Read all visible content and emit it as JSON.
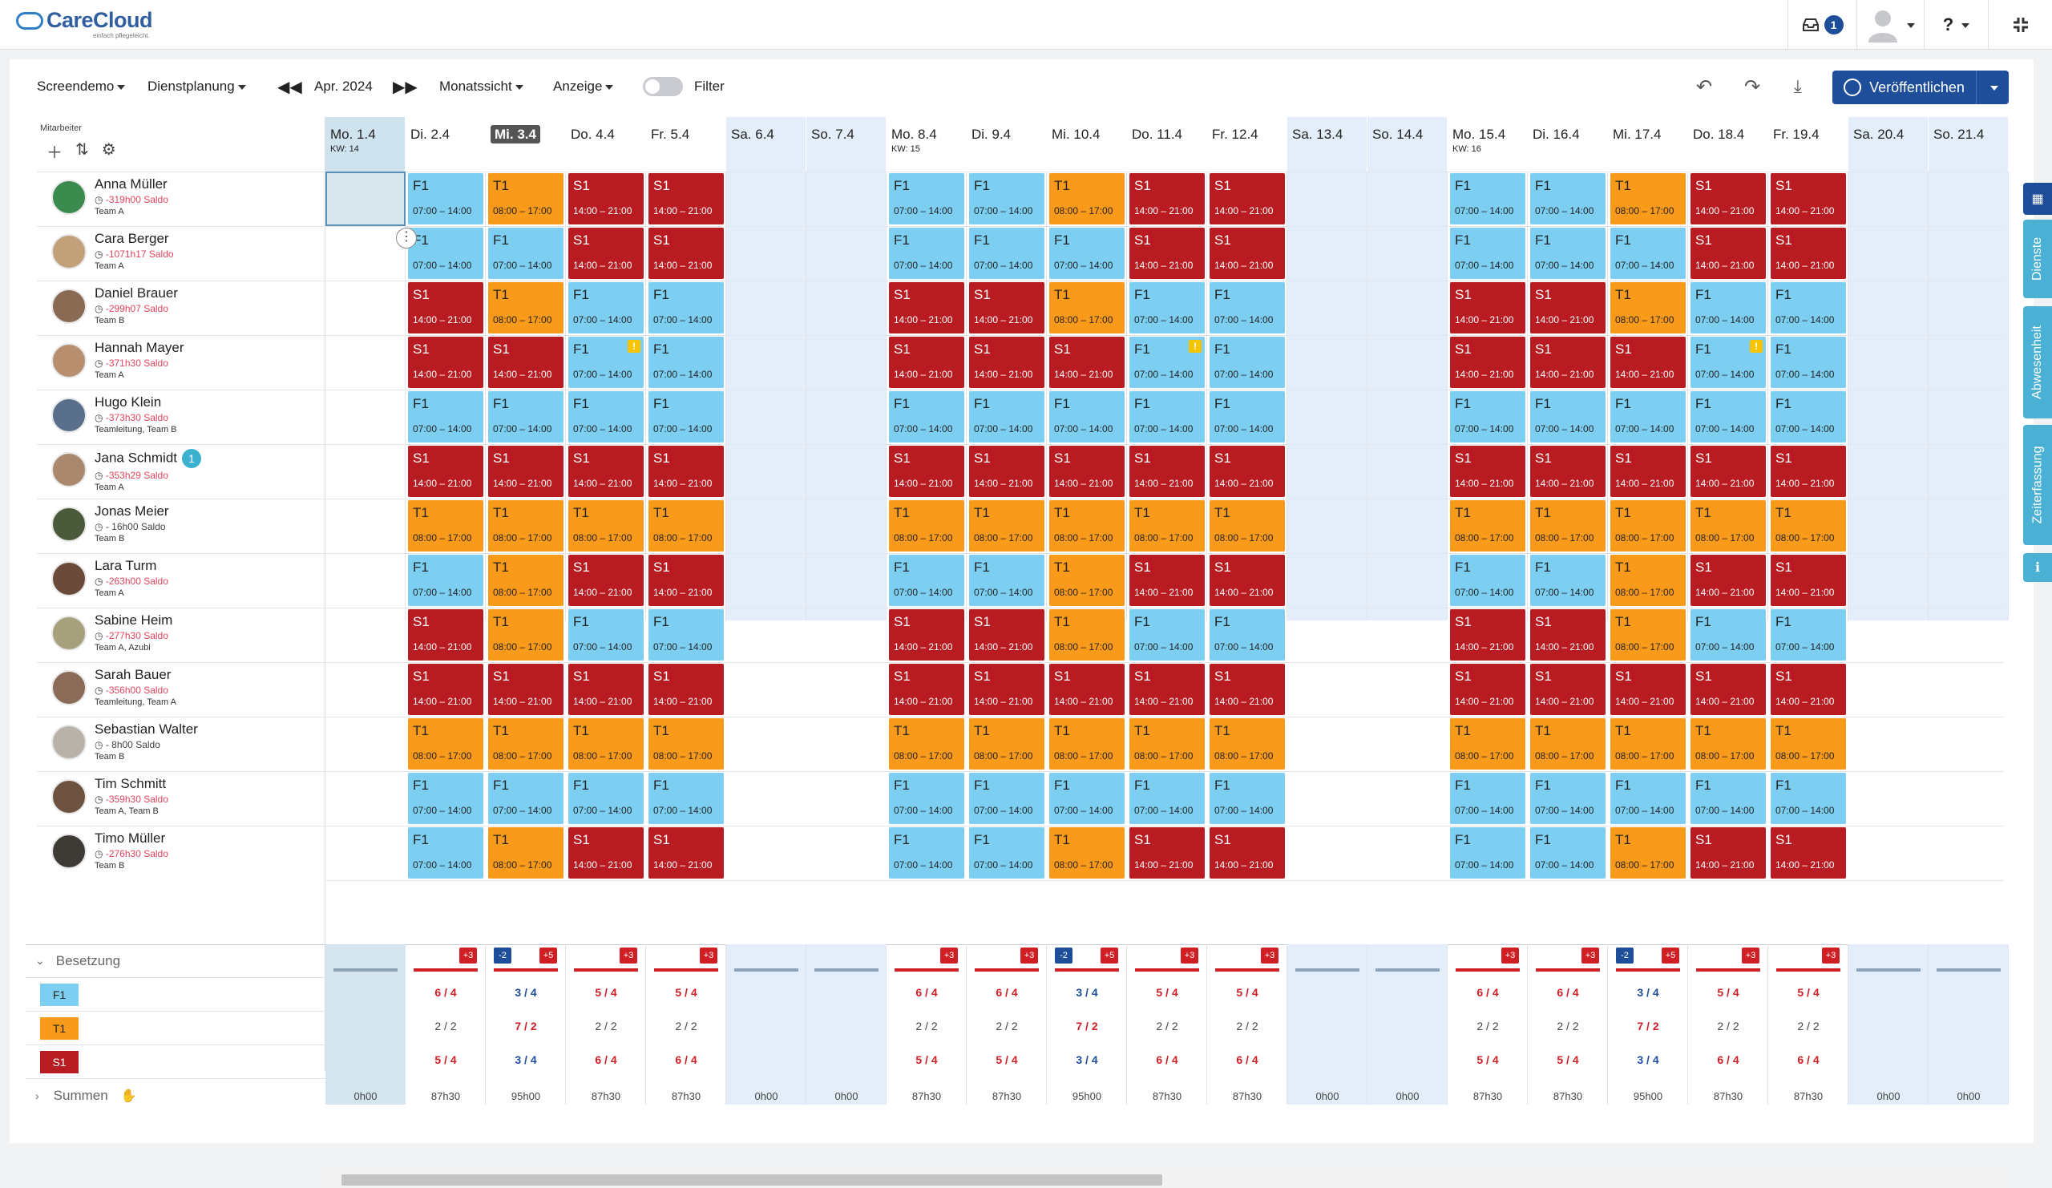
{
  "app": {
    "name": "CareCloud",
    "tagline": "einfach pflegeleicht."
  },
  "topbar": {
    "inbox_count": "1",
    "help_label": "?"
  },
  "toolbar": {
    "workspace": "Screendemo",
    "module": "Dienstplanung",
    "period": "Apr. 2024",
    "view": "Monatssicht",
    "display": "Anzeige",
    "filter_label": "Filter",
    "publish_label": "Veröffentlichen"
  },
  "left_header": "Mitarbeiter",
  "days": [
    {
      "label": "Mo. 1.4",
      "kw": "KW: 14",
      "weekend": false
    },
    {
      "label": "Di. 2.4",
      "kw": "",
      "weekend": false
    },
    {
      "label": "Mi. 3.4",
      "kw": "",
      "weekend": false
    },
    {
      "label": "Do. 4.4",
      "kw": "",
      "weekend": false
    },
    {
      "label": "Fr. 5.4",
      "kw": "",
      "weekend": false
    },
    {
      "label": "Sa. 6.4",
      "kw": "",
      "weekend": true
    },
    {
      "label": "So. 7.4",
      "kw": "",
      "weekend": true
    },
    {
      "label": "Mo. 8.4",
      "kw": "KW: 15",
      "weekend": false
    },
    {
      "label": "Di. 9.4",
      "kw": "",
      "weekend": false
    },
    {
      "label": "Mi. 10.4",
      "kw": "",
      "weekend": false
    },
    {
      "label": "Do. 11.4",
      "kw": "",
      "weekend": false
    },
    {
      "label": "Fr. 12.4",
      "kw": "",
      "weekend": false
    },
    {
      "label": "Sa. 13.4",
      "kw": "",
      "weekend": true
    },
    {
      "label": "So. 14.4",
      "kw": "",
      "weekend": true
    },
    {
      "label": "Mo. 15.4",
      "kw": "KW: 16",
      "weekend": false
    },
    {
      "label": "Di. 16.4",
      "kw": "",
      "weekend": false
    },
    {
      "label": "Mi. 17.4",
      "kw": "",
      "weekend": false
    },
    {
      "label": "Do. 18.4",
      "kw": "",
      "weekend": false
    },
    {
      "label": "Fr. 19.4",
      "kw": "",
      "weekend": false
    },
    {
      "label": "Sa. 20.4",
      "kw": "",
      "weekend": true
    },
    {
      "label": "So. 21.4",
      "kw": "",
      "weekend": true
    }
  ],
  "shift_times": {
    "F1": "07:00 – 14:00",
    "T1": "08:00 – 17:00",
    "S1": "14:00 – 21:00"
  },
  "employees": [
    {
      "name": "Anna Müller",
      "saldo": "-319h00 Saldo",
      "team": "Team A",
      "avatar": "#3b8a4e",
      "shifts": [
        "",
        "F1",
        "T1",
        "S1",
        "S1",
        "",
        "",
        "F1",
        "F1",
        "T1",
        "S1",
        "S1",
        "",
        "",
        "F1",
        "F1",
        "T1",
        "S1",
        "S1",
        "",
        ""
      ]
    },
    {
      "name": "Cara Berger",
      "saldo": "-1071h17 Saldo",
      "team": "Team A",
      "avatar": "#c2a079",
      "shifts": [
        "",
        "F1",
        "F1",
        "S1",
        "S1",
        "",
        "",
        "F1",
        "F1",
        "F1",
        "S1",
        "S1",
        "",
        "",
        "F1",
        "F1",
        "F1",
        "S1",
        "S1",
        "",
        ""
      ]
    },
    {
      "name": "Daniel Brauer",
      "saldo": "-299h07 Saldo",
      "team": "Team B",
      "avatar": "#8a6a52",
      "shifts": [
        "",
        "S1",
        "T1",
        "F1",
        "F1",
        "",
        "",
        "S1",
        "S1",
        "T1",
        "F1",
        "F1",
        "",
        "",
        "S1",
        "S1",
        "T1",
        "F1",
        "F1",
        "",
        ""
      ]
    },
    {
      "name": "Hannah Mayer",
      "saldo": "-371h30 Saldo",
      "team": "Team A",
      "avatar": "#b88f6e",
      "shifts": [
        "",
        "S1",
        "S1",
        "F1",
        "F1",
        "",
        "",
        "S1",
        "S1",
        "S1",
        "F1",
        "F1",
        "",
        "",
        "S1",
        "S1",
        "S1",
        "F1",
        "F1",
        "",
        ""
      ],
      "warn": [
        3,
        10,
        17
      ]
    },
    {
      "name": "Hugo Klein",
      "saldo": "-373h30 Saldo",
      "team": "Teamleitung, Team B",
      "avatar": "#5a6f8c",
      "shifts": [
        "",
        "F1",
        "F1",
        "F1",
        "F1",
        "",
        "",
        "F1",
        "F1",
        "F1",
        "F1",
        "F1",
        "",
        "",
        "F1",
        "F1",
        "F1",
        "F1",
        "F1",
        "",
        ""
      ]
    },
    {
      "name": "Jana Schmidt",
      "saldo": "-353h29 Saldo",
      "team": "Team A",
      "avatar": "#a9886d",
      "badge": "1",
      "shifts": [
        "",
        "S1",
        "S1",
        "S1",
        "S1",
        "",
        "",
        "S1",
        "S1",
        "S1",
        "S1",
        "S1",
        "",
        "",
        "S1",
        "S1",
        "S1",
        "S1",
        "S1",
        "",
        ""
      ]
    },
    {
      "name": "Jonas Meier",
      "saldo": "- 16h00 Saldo",
      "saldo_neutral": true,
      "team": "Team B",
      "avatar": "#4a5a3a",
      "shifts": [
        "",
        "T1",
        "T1",
        "T1",
        "T1",
        "",
        "",
        "T1",
        "T1",
        "T1",
        "T1",
        "T1",
        "",
        "",
        "T1",
        "T1",
        "T1",
        "T1",
        "T1",
        "",
        ""
      ]
    },
    {
      "name": "Lara Turm",
      "saldo": "-263h00 Saldo",
      "team": "Team A",
      "avatar": "#6b4a3a",
      "shifts": [
        "",
        "F1",
        "T1",
        "S1",
        "S1",
        "",
        "",
        "F1",
        "F1",
        "T1",
        "S1",
        "S1",
        "",
        "",
        "F1",
        "F1",
        "T1",
        "S1",
        "S1",
        "",
        ""
      ]
    },
    {
      "name": "Sabine Heim",
      "saldo": "-277h30 Saldo",
      "team": "Team A, Azubi",
      "avatar": "#a6a07c",
      "shifts": [
        "",
        "S1",
        "T1",
        "F1",
        "F1",
        "",
        "",
        "S1",
        "S1",
        "T1",
        "F1",
        "F1",
        "",
        "",
        "S1",
        "S1",
        "T1",
        "F1",
        "F1",
        "",
        ""
      ]
    },
    {
      "name": "Sarah Bauer",
      "saldo": "-356h00 Saldo",
      "team": "Teamleitung, Team A",
      "avatar": "#8c6a58",
      "shifts": [
        "",
        "S1",
        "S1",
        "S1",
        "S1",
        "",
        "",
        "S1",
        "S1",
        "S1",
        "S1",
        "S1",
        "",
        "",
        "S1",
        "S1",
        "S1",
        "S1",
        "S1",
        "",
        ""
      ]
    },
    {
      "name": "Sebastian Walter",
      "saldo": "- 8h00 Saldo",
      "saldo_neutral": true,
      "team": "Team B",
      "avatar": "#b9b2a8",
      "shifts": [
        "",
        "T1",
        "T1",
        "T1",
        "T1",
        "",
        "",
        "T1",
        "T1",
        "T1",
        "T1",
        "T1",
        "",
        "",
        "T1",
        "T1",
        "T1",
        "T1",
        "T1",
        "",
        ""
      ]
    },
    {
      "name": "Tim Schmitt",
      "saldo": "-359h30 Saldo",
      "team": "Team A, Team B",
      "avatar": "#6e5240",
      "shifts": [
        "",
        "F1",
        "F1",
        "F1",
        "F1",
        "",
        "",
        "F1",
        "F1",
        "F1",
        "F1",
        "F1",
        "",
        "",
        "F1",
        "F1",
        "F1",
        "F1",
        "F1",
        "",
        ""
      ]
    },
    {
      "name": "Timo Müller",
      "saldo": "-276h30 Saldo",
      "team": "Team B",
      "avatar": "#3e3a36",
      "shifts": [
        "",
        "F1",
        "T1",
        "S1",
        "S1",
        "",
        "",
        "F1",
        "F1",
        "T1",
        "S1",
        "S1",
        "",
        "",
        "F1",
        "F1",
        "T1",
        "S1",
        "S1",
        "",
        ""
      ]
    }
  ],
  "besetzung": {
    "label": "Besetzung",
    "shifts": [
      "F1",
      "T1",
      "S1"
    ],
    "summen_label": "Summen",
    "tags": [
      [],
      [
        "+3"
      ],
      [
        "-2",
        "+5"
      ],
      [
        "+3"
      ],
      [
        "+3"
      ],
      [],
      [],
      [
        "+3"
      ],
      [
        "+3"
      ],
      [
        "-2",
        "+5"
      ],
      [
        "+3"
      ],
      [
        "+3"
      ],
      [],
      [],
      [
        "+3"
      ],
      [
        "+3"
      ],
      [
        "-2",
        "+5"
      ],
      [
        "+3"
      ],
      [
        "+3"
      ],
      [],
      []
    ],
    "F1": [
      [
        "",
        ""
      ],
      [
        "6 / 4",
        "red"
      ],
      [
        "3 / 4",
        "blue"
      ],
      [
        "5 / 4",
        "red"
      ],
      [
        "5 / 4",
        "red"
      ],
      [
        "",
        ""
      ],
      [
        "",
        ""
      ],
      [
        "6 / 4",
        "red"
      ],
      [
        "6 / 4",
        "red"
      ],
      [
        "3 / 4",
        "blue"
      ],
      [
        "5 / 4",
        "red"
      ],
      [
        "5 / 4",
        "red"
      ],
      [
        "",
        ""
      ],
      [
        "",
        ""
      ],
      [
        "6 / 4",
        "red"
      ],
      [
        "6 / 4",
        "red"
      ],
      [
        "3 / 4",
        "blue"
      ],
      [
        "5 / 4",
        "red"
      ],
      [
        "5 / 4",
        "red"
      ],
      [
        "",
        ""
      ],
      [
        "",
        ""
      ]
    ],
    "T1": [
      [
        "",
        ""
      ],
      [
        "2 / 2",
        "plain"
      ],
      [
        "7 / 2",
        "red"
      ],
      [
        "2 / 2",
        "plain"
      ],
      [
        "2 / 2",
        "plain"
      ],
      [
        "",
        ""
      ],
      [
        "",
        ""
      ],
      [
        "2 / 2",
        "plain"
      ],
      [
        "2 / 2",
        "plain"
      ],
      [
        "7 / 2",
        "red"
      ],
      [
        "2 / 2",
        "plain"
      ],
      [
        "2 / 2",
        "plain"
      ],
      [
        "",
        ""
      ],
      [
        "",
        ""
      ],
      [
        "2 / 2",
        "plain"
      ],
      [
        "2 / 2",
        "plain"
      ],
      [
        "7 / 2",
        "red"
      ],
      [
        "2 / 2",
        "plain"
      ],
      [
        "2 / 2",
        "plain"
      ],
      [
        "",
        ""
      ],
      [
        "",
        ""
      ]
    ],
    "S1": [
      [
        "",
        ""
      ],
      [
        "5 / 4",
        "red"
      ],
      [
        "3 / 4",
        "blue"
      ],
      [
        "6 / 4",
        "red"
      ],
      [
        "6 / 4",
        "red"
      ],
      [
        "",
        ""
      ],
      [
        "",
        ""
      ],
      [
        "5 / 4",
        "red"
      ],
      [
        "5 / 4",
        "red"
      ],
      [
        "3 / 4",
        "blue"
      ],
      [
        "6 / 4",
        "red"
      ],
      [
        "6 / 4",
        "red"
      ],
      [
        "",
        ""
      ],
      [
        "",
        ""
      ],
      [
        "5 / 4",
        "red"
      ],
      [
        "5 / 4",
        "red"
      ],
      [
        "3 / 4",
        "blue"
      ],
      [
        "6 / 4",
        "red"
      ],
      [
        "6 / 4",
        "red"
      ],
      [
        "",
        ""
      ],
      [
        "",
        ""
      ]
    ],
    "sums": [
      "0h00",
      "87h30",
      "95h00",
      "87h30",
      "87h30",
      "0h00",
      "0h00",
      "87h30",
      "87h30",
      "95h00",
      "87h30",
      "87h30",
      "0h00",
      "0h00",
      "87h30",
      "87h30",
      "95h00",
      "87h30",
      "87h30",
      "0h00",
      "0h00"
    ]
  },
  "side_tabs": [
    "Dienste",
    "Abwesenheit",
    "Zeiterfassung"
  ],
  "colors": {
    "F1": "#7dcff2",
    "T1": "#fa9a1a",
    "S1": "#b81c22",
    "primary": "#1e4d9a",
    "accent": "#4ab0d4"
  }
}
